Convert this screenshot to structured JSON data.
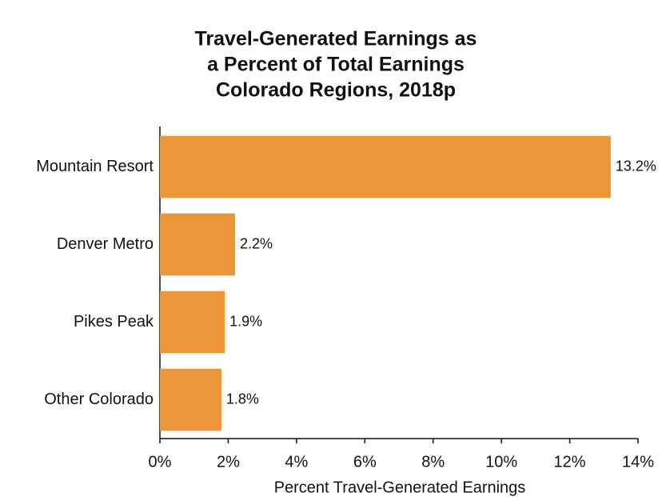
{
  "chart_data": {
    "type": "bar",
    "orientation": "horizontal",
    "title": [
      "Travel-Generated Earnings as",
      "a Percent of Total Earnings",
      "Colorado Regions, 2018p"
    ],
    "x_label": "Percent Travel-Generated Earnings",
    "categories": [
      "Mountain Resort",
      "Denver Metro",
      "Pikes Peak",
      "Other Colorado"
    ],
    "values": [
      13.2,
      2.2,
      1.9,
      1.8
    ],
    "value_labels": [
      "13.2%",
      "2.2%",
      "1.9%",
      "1.8%"
    ],
    "color": "#ec963a",
    "xlim": [
      0,
      14
    ],
    "xticks": [
      {
        "value": 0,
        "label": "0%"
      },
      {
        "value": 2,
        "label": "2%"
      },
      {
        "value": 4,
        "label": "4%"
      },
      {
        "value": 6,
        "label": "6%"
      },
      {
        "value": 8,
        "label": "8%"
      },
      {
        "value": 10,
        "label": "10%"
      },
      {
        "value": 12,
        "label": "12%"
      },
      {
        "value": 14,
        "label": "14%"
      }
    ],
    "grid": false
  }
}
